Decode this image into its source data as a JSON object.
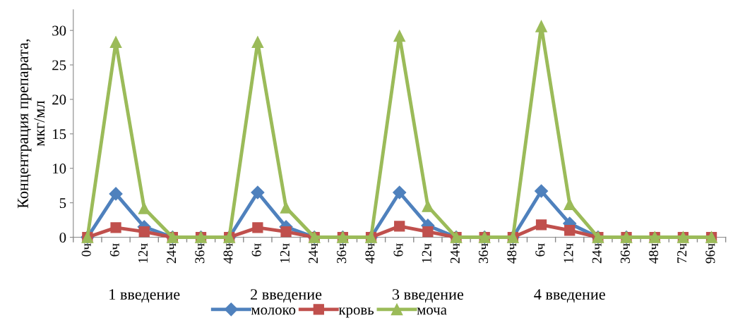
{
  "chart_data": {
    "type": "line",
    "ylabel": "Концентрация препарата,\nмкг/мл",
    "categories": [
      "0ч",
      "6ч",
      "12ч",
      "24ч",
      "36ч",
      "48ч",
      "6ч",
      "12ч",
      "24ч",
      "36ч",
      "48ч",
      "6ч",
      "12ч",
      "24ч",
      "36ч",
      "48ч",
      "6ч",
      "12ч",
      "24ч",
      "36ч",
      "48ч",
      "72ч",
      "96ч"
    ],
    "series": [
      {
        "name": "молоко",
        "color": "#4f81bd",
        "marker": "diamond",
        "values": [
          0,
          6.3,
          1.5,
          0,
          0,
          0,
          6.5,
          1.5,
          0,
          0,
          0,
          6.5,
          1.7,
          0,
          0,
          0,
          6.7,
          2.0,
          0,
          0,
          null,
          null,
          null
        ]
      },
      {
        "name": "кровь",
        "color": "#c0504d",
        "marker": "square",
        "values": [
          0,
          1.4,
          0.8,
          0,
          0,
          0,
          1.4,
          0.8,
          0,
          0,
          0,
          1.6,
          0.8,
          0,
          0,
          0,
          1.8,
          1.0,
          0,
          0,
          0,
          0,
          0
        ]
      },
      {
        "name": "моча",
        "color": "#9bbb59",
        "marker": "triangle",
        "values": [
          0,
          28.3,
          4.2,
          0,
          0,
          0,
          28.3,
          4.3,
          0,
          0,
          0,
          29.2,
          4.5,
          0,
          0,
          0,
          30.6,
          4.8,
          0,
          0,
          0,
          0,
          0
        ]
      }
    ],
    "ylim": [
      0,
      33
    ],
    "yticks": [
      0,
      5,
      10,
      15,
      20,
      25,
      30
    ],
    "grid": false,
    "legend": "bottom",
    "annotations": [
      "1 введение",
      "2 введение",
      "3 введение",
      "4 введение"
    ]
  }
}
